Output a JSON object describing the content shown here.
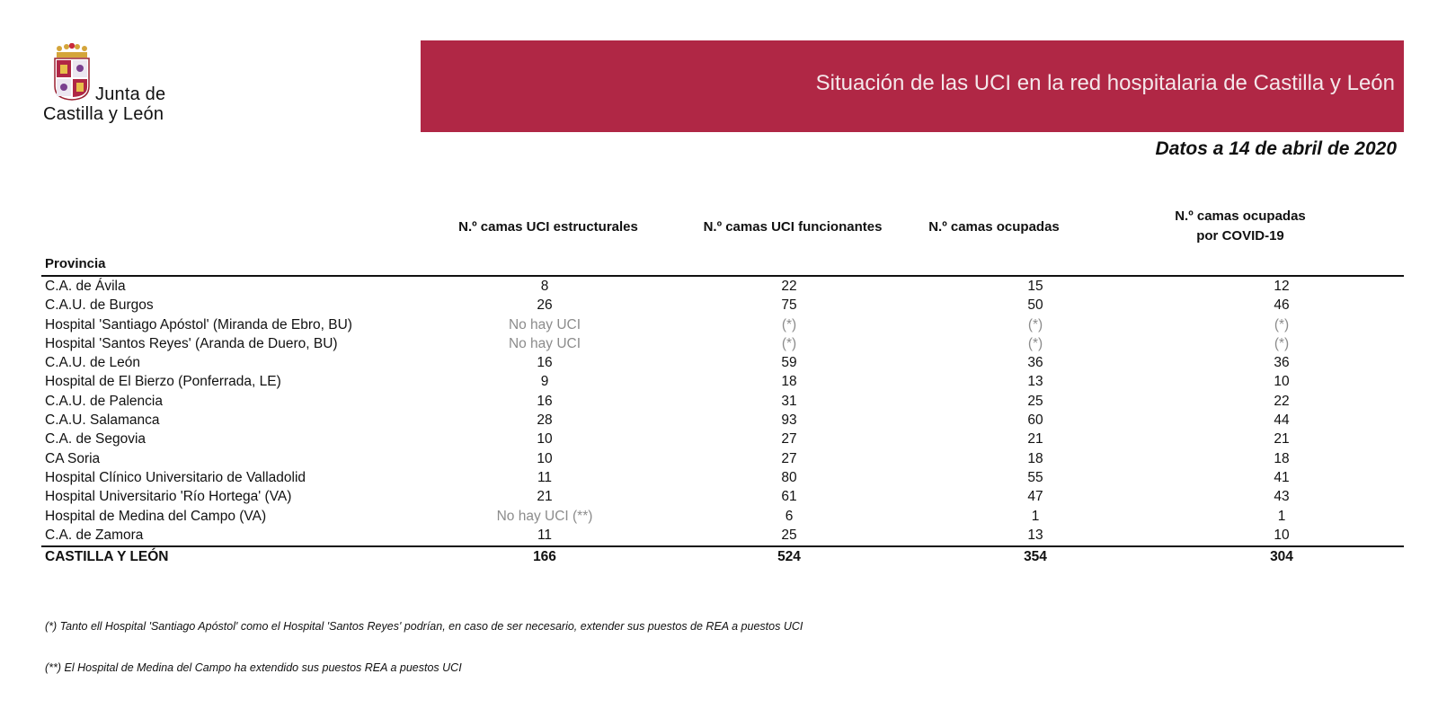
{
  "logo": {
    "line1": "Junta de",
    "line2": "Castilla y León"
  },
  "banner": {
    "title": "Situación de las UCI en la red hospitalaria de Castilla y León",
    "color": "#b02745"
  },
  "date_label": "Datos a 14 de abril de 2020",
  "table": {
    "row_header": "Provincia",
    "columns": [
      [
        "N.º camas UCI estructurales"
      ],
      [
        "N.º camas UCI funcionantes"
      ],
      [
        "N.º camas ocupadas"
      ],
      [
        "N.º camas ocupadas",
        "por COVID-19"
      ]
    ],
    "rows": [
      {
        "name": "C.A. de Ávila",
        "values": [
          "8",
          "22",
          "15",
          "12"
        ],
        "muted": [
          false,
          false,
          false,
          false
        ]
      },
      {
        "name": "C.A.U. de Burgos",
        "values": [
          "26",
          "75",
          "50",
          "46"
        ],
        "muted": [
          false,
          false,
          false,
          false
        ]
      },
      {
        "name": "Hospital 'Santiago Apóstol' (Miranda de Ebro, BU)",
        "values": [
          "No hay UCI",
          "(*)",
          "(*)",
          "(*)"
        ],
        "muted": [
          true,
          true,
          true,
          true
        ]
      },
      {
        "name": "Hospital 'Santos Reyes' (Aranda de Duero, BU)",
        "values": [
          "No hay UCI",
          "(*)",
          "(*)",
          "(*)"
        ],
        "muted": [
          true,
          true,
          true,
          true
        ]
      },
      {
        "name": "C.A.U. de León",
        "values": [
          "16",
          "59",
          "36",
          "36"
        ],
        "muted": [
          false,
          false,
          false,
          false
        ]
      },
      {
        "name": "Hospital de El Bierzo (Ponferrada, LE)",
        "values": [
          "9",
          "18",
          "13",
          "10"
        ],
        "muted": [
          false,
          false,
          false,
          false
        ]
      },
      {
        "name": "C.A.U. de Palencia",
        "values": [
          "16",
          "31",
          "25",
          "22"
        ],
        "muted": [
          false,
          false,
          false,
          false
        ]
      },
      {
        "name": "C.A.U. Salamanca",
        "values": [
          "28",
          "93",
          "60",
          "44"
        ],
        "muted": [
          false,
          false,
          false,
          false
        ]
      },
      {
        "name": "C.A. de Segovia",
        "values": [
          "10",
          "27",
          "21",
          "21"
        ],
        "muted": [
          false,
          false,
          false,
          false
        ]
      },
      {
        "name": "CA Soria",
        "values": [
          "10",
          "27",
          "18",
          "18"
        ],
        "muted": [
          false,
          false,
          false,
          false
        ]
      },
      {
        "name": "Hospital Clínico Universitario de Valladolid",
        "values": [
          "11",
          "80",
          "55",
          "41"
        ],
        "muted": [
          false,
          false,
          false,
          false
        ]
      },
      {
        "name": "Hospital Universitario 'Río Hortega' (VA)",
        "values": [
          "21",
          "61",
          "47",
          "43"
        ],
        "muted": [
          false,
          false,
          false,
          false
        ]
      },
      {
        "name": "Hospital de Medina del Campo (VA)",
        "values": [
          "No hay UCI (**)",
          "6",
          "1",
          "1"
        ],
        "muted": [
          true,
          false,
          false,
          false
        ]
      },
      {
        "name": "C.A. de Zamora",
        "values": [
          "11",
          "25",
          "13",
          "10"
        ],
        "muted": [
          false,
          false,
          false,
          false
        ]
      }
    ],
    "total": {
      "name": "CASTILLA Y LEÓN",
      "values": [
        "166",
        "524",
        "354",
        "304"
      ]
    }
  },
  "footnotes": [
    "(*) Tanto ell Hospital 'Santiago Apóstol' como el Hospital 'Santos Reyes' podrían, en caso de ser necesario, extender sus puestos de REA a puestos UCI",
    "(**) El Hospital de Medina del Campo ha extendido sus puestos REA a puestos UCI"
  ]
}
